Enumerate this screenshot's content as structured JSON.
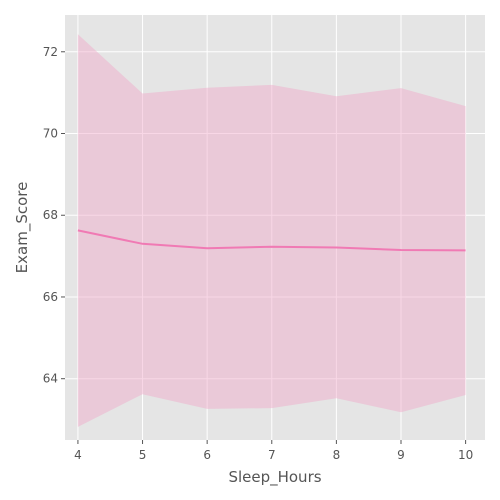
{
  "chart_data": {
    "type": "line",
    "title": "",
    "xlabel": "Sleep_Hours",
    "ylabel": "Exam_Score",
    "x": [
      4,
      5,
      6,
      7,
      8,
      9,
      10
    ],
    "series": [
      {
        "values": [
          67.63,
          67.3,
          67.19,
          67.23,
          67.21,
          67.15,
          67.14
        ],
        "band_lower": [
          62.82,
          63.62,
          63.26,
          63.28,
          63.52,
          63.18,
          63.6
        ],
        "band_upper": [
          72.43,
          70.98,
          71.12,
          71.19,
          70.91,
          71.11,
          70.67
        ],
        "color": "#f07ab4",
        "band_color": "#f0a6c8"
      }
    ],
    "xlim": [
      3.8,
      10.3
    ],
    "ylim": [
      62.5,
      72.9
    ],
    "xticks": [
      "4",
      "5",
      "6",
      "7",
      "8",
      "9",
      "10"
    ],
    "yticks": [
      "64",
      "66",
      "68",
      "70",
      "72"
    ],
    "grid": true,
    "background": "#e5e5e5",
    "grid_color": "#ffffff"
  }
}
